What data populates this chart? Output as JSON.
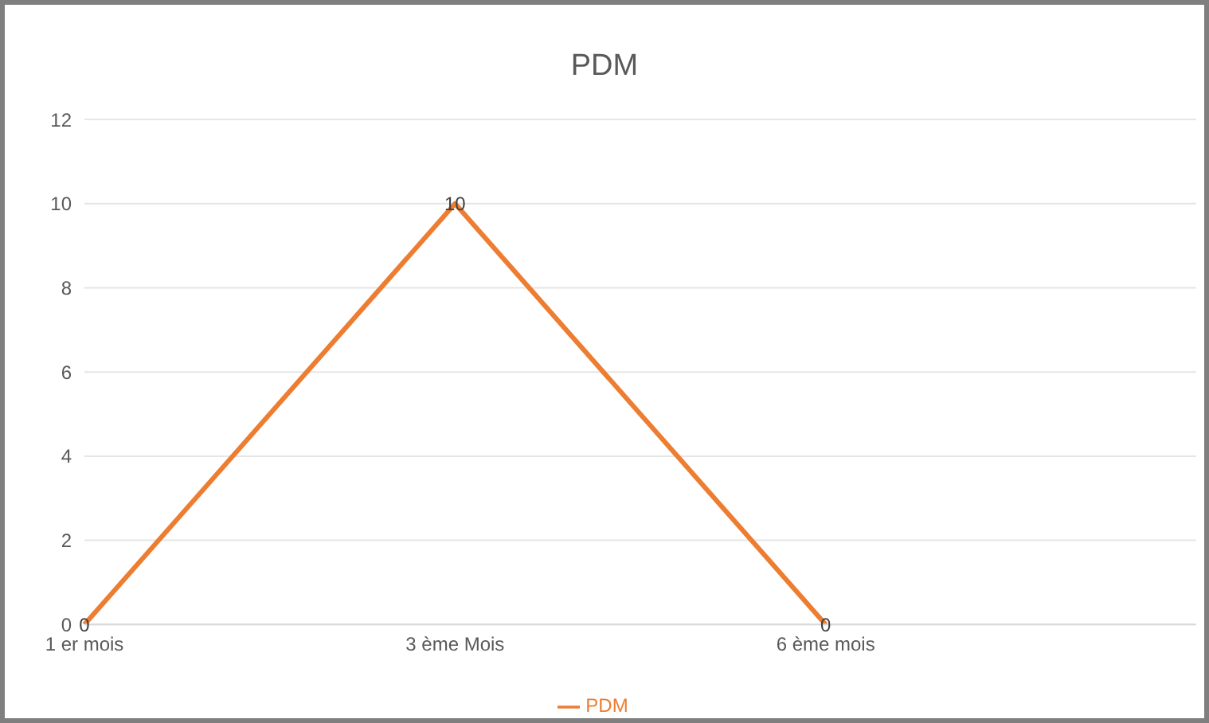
{
  "chart_data": {
    "type": "line",
    "title": "PDM",
    "categories": [
      "1 er mois",
      "3 ème Mois",
      "6 ème mois",
      null
    ],
    "series": [
      {
        "name": "PDM",
        "color": "#ed7d31",
        "values": [
          0,
          10,
          0,
          null
        ]
      }
    ],
    "ylim": [
      0,
      12
    ],
    "yticks": [
      0,
      2,
      4,
      6,
      8,
      10,
      12
    ],
    "grid": "y",
    "legend": "bottom",
    "data_labels": true,
    "marker": "none"
  }
}
